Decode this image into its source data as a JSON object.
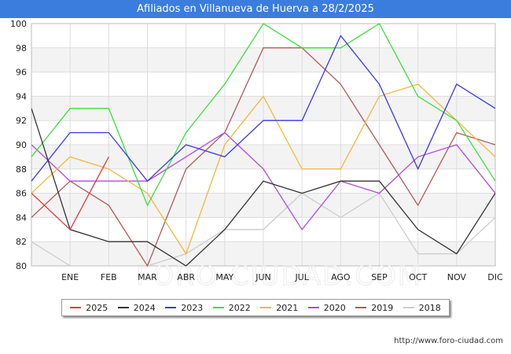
{
  "title": "Afiliados en Villanueva de Huerva a 28/2/2025",
  "source": "http://www.foro-ciudad.com",
  "watermark": "FORO-CIUDAD.COM",
  "chart_data": {
    "type": "line",
    "x_tick_labels": [
      "ENE",
      "FEB",
      "MAR",
      "ABR",
      "MAY",
      "JUN",
      "JUL",
      "AGO",
      "SEP",
      "OCT",
      "NOV",
      "DIC"
    ],
    "y_ticks": [
      80,
      82,
      84,
      86,
      88,
      90,
      92,
      94,
      96,
      98,
      100
    ],
    "ylim": [
      80,
      100
    ],
    "grid": true,
    "legend_position": "bottom",
    "series": [
      {
        "name": "2025",
        "color": "#e03a3a",
        "values": [
          86,
          83,
          89
        ]
      },
      {
        "name": "2024",
        "color": "#333333",
        "values": [
          93,
          83,
          82,
          82,
          80,
          83,
          87,
          86,
          87,
          87,
          83,
          81,
          86
        ]
      },
      {
        "name": "2023",
        "color": "#3a3ae0",
        "values": [
          87,
          91,
          91,
          87,
          90,
          89,
          92,
          92,
          99,
          95,
          88,
          95,
          93
        ]
      },
      {
        "name": "2022",
        "color": "#3ae03a",
        "values": [
          89,
          93,
          93,
          85,
          91,
          95,
          100,
          98,
          98,
          100,
          94,
          92,
          87
        ]
      },
      {
        "name": "2021",
        "color": "#f5b73a",
        "values": [
          86,
          89,
          88,
          86,
          81,
          90,
          94,
          88,
          88,
          94,
          95,
          92,
          89
        ]
      },
      {
        "name": "2020",
        "color": "#b04ae0",
        "values": [
          90,
          87,
          87,
          87,
          89,
          91,
          88,
          83,
          87,
          86,
          89,
          90,
          86
        ]
      },
      {
        "name": "2019",
        "color": "#b05a5a",
        "values": [
          84,
          87,
          85,
          80,
          88,
          91,
          98,
          98,
          95,
          90,
          85,
          91,
          90
        ]
      },
      {
        "name": "2018",
        "color": "#cccccc",
        "values": [
          82,
          80,
          80,
          80,
          81,
          83,
          83,
          86,
          84,
          86,
          81,
          81,
          84
        ]
      }
    ]
  }
}
